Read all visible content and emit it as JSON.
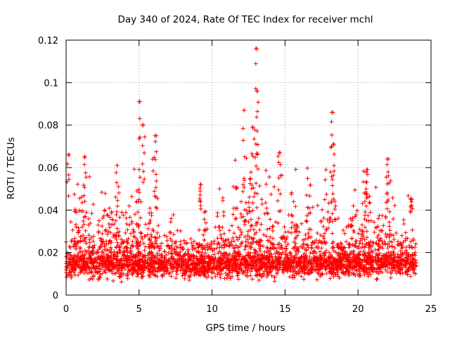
{
  "chart_data": {
    "type": "scatter",
    "title": "Day 340 of 2024, Rate Of TEC Index for receiver mchl",
    "xlabel": "GPS time / hours",
    "ylabel": "ROTI / TECUs",
    "xlim": [
      0,
      25
    ],
    "ylim": [
      0,
      0.12
    ],
    "xticks": [
      0,
      5,
      10,
      15,
      20,
      25
    ],
    "yticks": [
      0,
      0.02,
      0.04,
      0.06,
      0.08,
      0.1,
      0.12
    ],
    "xtick_labels": [
      "0",
      "5",
      "10",
      "15",
      "20",
      "25"
    ],
    "ytick_labels": [
      "0",
      "0.02",
      "0.04",
      "0.06",
      "0.08",
      "0.1",
      "0.12"
    ],
    "grid": true,
    "marker": "+",
    "series": [
      {
        "name": "ROTI",
        "color": "#ff0000",
        "data_span_hours": [
          0,
          24
        ],
        "baseline_band": [
          0.005,
          0.025
        ],
        "notable_peaks": [
          {
            "x": 0.15,
            "y": 0.066
          },
          {
            "x": 1.3,
            "y": 0.065
          },
          {
            "x": 3.5,
            "y": 0.061
          },
          {
            "x": 5.0,
            "y": 0.091
          },
          {
            "x": 5.3,
            "y": 0.08
          },
          {
            "x": 6.1,
            "y": 0.075
          },
          {
            "x": 9.2,
            "y": 0.052
          },
          {
            "x": 12.2,
            "y": 0.087
          },
          {
            "x": 12.8,
            "y": 0.079
          },
          {
            "x": 13.0,
            "y": 0.116
          },
          {
            "x": 13.1,
            "y": 0.096
          },
          {
            "x": 14.6,
            "y": 0.067
          },
          {
            "x": 18.2,
            "y": 0.086
          },
          {
            "x": 18.3,
            "y": 0.071
          },
          {
            "x": 20.6,
            "y": 0.059
          },
          {
            "x": 22.0,
            "y": 0.064
          },
          {
            "x": 23.7,
            "y": 0.045
          }
        ]
      }
    ]
  }
}
